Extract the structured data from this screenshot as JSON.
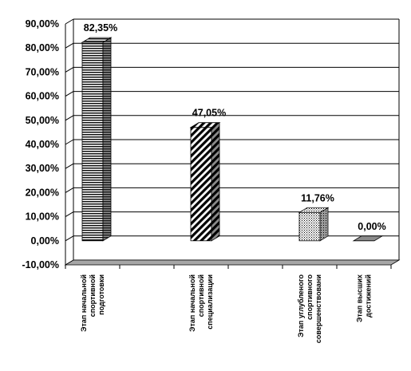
{
  "chart_data": {
    "type": "bar",
    "categories": [
      [
        "Этап начальной",
        "спортивной",
        "подготовки"
      ],
      [],
      [
        "Этап начальной",
        "спортивной",
        "специализации"
      ],
      [],
      [
        "Этап углубленого",
        "спортивного",
        "совершенствовани"
      ],
      [
        "Этап высших",
        "достижений"
      ]
    ],
    "values": [
      82.35,
      null,
      47.05,
      null,
      11.76,
      0.0
    ],
    "data_labels": [
      "82,35%",
      "",
      "47,05%",
      "",
      "11,76%",
      "0,00%"
    ],
    "patterns": [
      "horizontal-lines",
      "none",
      "diagonal-stripes",
      "none",
      "dots",
      "solid"
    ],
    "ylim": [
      -10,
      90
    ],
    "ytick_step": 10,
    "ytick_labels": [
      "-10,00%",
      "0,00%",
      "10,00%",
      "20,00%",
      "30,00%",
      "40,00%",
      "50,00%",
      "60,00%",
      "70,00%",
      "80,00%",
      "90,00%"
    ],
    "grid": true,
    "style": "3d-bar",
    "colors": {
      "bar_front": "#ffffff",
      "pattern": "#000000",
      "side": "#7f7f7f",
      "top": "#bfbfbf",
      "floor": "#a6a6a6",
      "gridline": "#000000"
    }
  }
}
